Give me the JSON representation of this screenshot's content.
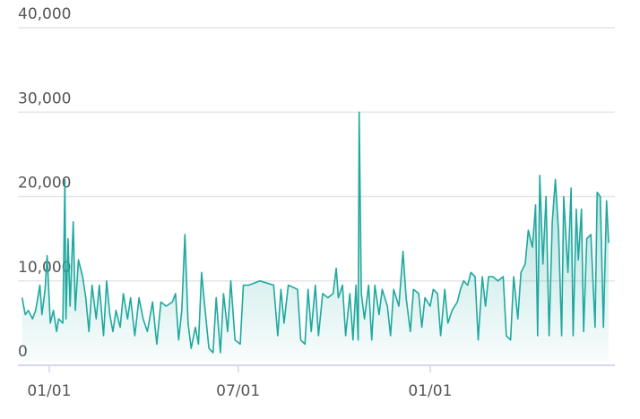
{
  "chart_data": {
    "type": "area",
    "x": [
      -26,
      -23,
      -20,
      -16,
      -13,
      -9,
      -7,
      -4,
      -2,
      1,
      4,
      7,
      9,
      13,
      15,
      16,
      18,
      20,
      23,
      25,
      28,
      32,
      35,
      38,
      41,
      45,
      48,
      52,
      55,
      58,
      61,
      64,
      68,
      71,
      75,
      78,
      82,
      86,
      90,
      94,
      99,
      103,
      107,
      112,
      118,
      121,
      124,
      127,
      130,
      133,
      136,
      140,
      143,
      146,
      149,
      153,
      157,
      160,
      164,
      167,
      171,
      174,
      178,
      183,
      186,
      191,
      202,
      215,
      219,
      222,
      225,
      229,
      238,
      241,
      245,
      248,
      251,
      255,
      258,
      262,
      267,
      272,
      275,
      277,
      281,
      284,
      288,
      291,
      294,
      296,
      297,
      299,
      302,
      306,
      309,
      312,
      316,
      319,
      324,
      327,
      330,
      335,
      339,
      342,
      346,
      349,
      354,
      357,
      360,
      365,
      368,
      372,
      375,
      379,
      382,
      386,
      391,
      394,
      397,
      401,
      404,
      408,
      411,
      415,
      418,
      421,
      425,
      430,
      435,
      438,
      442,
      445,
      449,
      452,
      456,
      459,
      463,
      466,
      468,
      470,
      473,
      476,
      479,
      482,
      485,
      488,
      491,
      493,
      497,
      500,
      502,
      505,
      507,
      510,
      512,
      515,
      519,
      523,
      525,
      528,
      531,
      534,
      536
    ],
    "series": [
      {
        "color": "#1fa89f",
        "values": [
          8000,
          6000,
          6500,
          5500,
          6500,
          9500,
          6000,
          9000,
          13000,
          5000,
          6500,
          4000,
          5500,
          5000,
          22000,
          5500,
          15000,
          7000,
          17000,
          6500,
          12500,
          10500,
          8000,
          4000,
          9500,
          5500,
          9500,
          3500,
          10000,
          6000,
          4000,
          6500,
          4500,
          8500,
          5500,
          8000,
          3500,
          8000,
          5500,
          4000,
          7500,
          2500,
          7500,
          7000,
          7500,
          8500,
          3000,
          6500,
          15500,
          5000,
          2000,
          4500,
          2500,
          11000,
          7000,
          2000,
          1500,
          8000,
          1500,
          8500,
          4000,
          10000,
          3000,
          2500,
          9500,
          9500,
          10000,
          9500,
          3500,
          9000,
          5000,
          9500,
          9000,
          3000,
          2500,
          9000,
          4000,
          9500,
          3500,
          8500,
          8000,
          8500,
          11500,
          8000,
          9500,
          3500,
          8500,
          3000,
          9500,
          3000,
          30000,
          8500,
          5500,
          9500,
          3000,
          9500,
          6000,
          9000,
          7000,
          3500,
          9000,
          7000,
          13500,
          8000,
          4000,
          9000,
          8500,
          4500,
          8000,
          7000,
          9000,
          8500,
          3500,
          9000,
          5000,
          6500,
          7500,
          9000,
          10000,
          9500,
          11000,
          10500,
          3000,
          10500,
          7000,
          10500,
          10500,
          10000,
          10500,
          3500,
          3000,
          10500,
          5500,
          11000,
          12000,
          16000,
          14000,
          19000,
          3500,
          22500,
          12000,
          20000,
          3500,
          17000,
          22000,
          16000,
          3500,
          20000,
          11000,
          21000,
          3500,
          18500,
          12500,
          18500,
          4000,
          15000,
          15500,
          4500,
          20500,
          20000,
          4500,
          19500,
          14500
        ]
      }
    ],
    "xlim": [
      -30,
      542
    ],
    "ylim": [
      0,
      40000
    ],
    "xticks": [
      {
        "value": 0,
        "label": "01/01"
      },
      {
        "value": 181,
        "label": "07/01"
      },
      {
        "value": 365,
        "label": "01/01"
      }
    ],
    "yticks": [
      0,
      {
        "value": 10000,
        "label": "10,000"
      },
      {
        "value": 20000,
        "label": "20,000"
      },
      {
        "value": 30000,
        "label": "30,000"
      },
      {
        "value": 40000,
        "label": "40,000"
      }
    ],
    "grid": true
  }
}
